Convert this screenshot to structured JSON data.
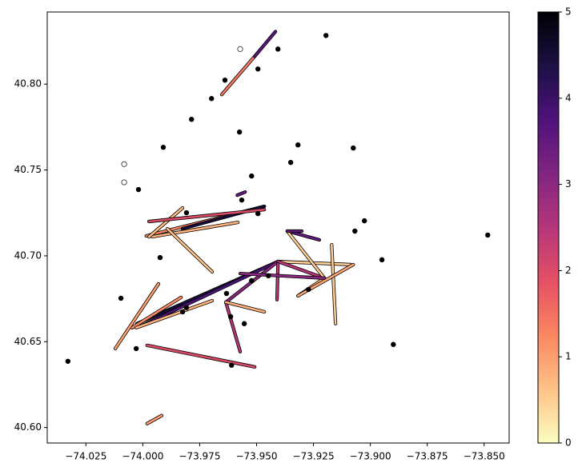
{
  "chart_data": {
    "type": "scatter",
    "xlim": [
      -74.042,
      -73.839
    ],
    "ylim": [
      40.591,
      40.842
    ],
    "xticks": [
      {
        "value": -74.025,
        "label": "−74.025"
      },
      {
        "value": -74.0,
        "label": "−74.000"
      },
      {
        "value": -73.975,
        "label": "−73.975"
      },
      {
        "value": -73.95,
        "label": "−73.950"
      },
      {
        "value": -73.925,
        "label": "−73.925"
      },
      {
        "value": -73.9,
        "label": "−73.900"
      },
      {
        "value": -73.875,
        "label": "−73.875"
      },
      {
        "value": -73.85,
        "label": "−73.850"
      }
    ],
    "yticks": [
      {
        "value": 40.6,
        "label": "40.60"
      },
      {
        "value": 40.65,
        "label": "40.65"
      },
      {
        "value": 40.7,
        "label": "40.70"
      },
      {
        "value": 40.75,
        "label": "40.75"
      },
      {
        "value": 40.8,
        "label": "40.80"
      }
    ],
    "series": [
      {
        "color": "#000000",
        "filled": true,
        "x": [
          -74.0329,
          -74.0029,
          -74.0096,
          -73.9808,
          -73.9825,
          -73.9614,
          -73.9554,
          -73.961,
          -73.9632,
          -73.9522,
          -73.9448,
          -73.9272,
          -73.8899,
          -73.8949,
          -73.9068,
          -73.9026,
          -73.8484,
          -73.9565,
          -73.9522,
          -73.9494,
          -73.935,
          -73.9318,
          -73.9075,
          -73.9575,
          -73.9786,
          -73.991,
          -73.9698,
          -73.9639,
          -73.9494,
          -73.9406,
          -73.9195,
          -74.0019,
          -73.9924,
          -73.9808
        ],
        "y": [
          40.6386,
          40.646,
          40.6753,
          40.6698,
          40.6674,
          40.6646,
          40.6605,
          40.6363,
          40.6781,
          40.6856,
          40.6884,
          40.6804,
          40.6484,
          40.6977,
          40.7144,
          40.7204,
          40.7121,
          40.7325,
          40.7465,
          40.7246,
          40.7544,
          40.7646,
          40.7628,
          40.7721,
          40.7795,
          40.7632,
          40.7916,
          40.8023,
          40.8088,
          40.8204,
          40.8283,
          40.7386,
          40.699,
          40.7251
        ]
      },
      {
        "color": "#000000",
        "filled": false,
        "x": [
          -73.9572,
          -74.0082,
          -74.0082
        ],
        "y": [
          40.8204,
          40.7534,
          40.7428
        ]
      }
    ],
    "lines": [
      {
        "x": [
          -73.9653,
          -73.9508
        ],
        "y": [
          40.7939,
          40.8162
        ],
        "value": 1.4
      },
      {
        "x": [
          -73.9508,
          -73.9417
        ],
        "y": [
          40.8162,
          40.8306
        ],
        "value": 3.6
      },
      {
        "x": [
          -73.9585,
          -73.955
        ],
        "y": [
          40.7353,
          40.7372
        ],
        "value": 3.5
      },
      {
        "x": [
          -73.9985,
          -73.9466
        ],
        "y": [
          40.7116,
          40.7288
        ],
        "value": 1.3
      },
      {
        "x": [
          -73.9826,
          -73.9466
        ],
        "y": [
          40.7158,
          40.7288
        ],
        "value": 4.5
      },
      {
        "x": [
          -73.9959,
          -73.9582
        ],
        "y": [
          40.7111,
          40.7195
        ],
        "value": 0.8
      },
      {
        "x": [
          -73.9825,
          -73.9973
        ],
        "y": [
          40.7279,
          40.7111
        ],
        "value": 0.7
      },
      {
        "x": [
          -73.9892,
          -73.9695
        ],
        "y": [
          40.7158,
          40.6907
        ],
        "value": 0.6
      },
      {
        "x": [
          -73.9973,
          -73.9466
        ],
        "y": [
          40.72,
          40.7269
        ],
        "value": 2.0
      },
      {
        "x": [
          -73.9406,
          -74.0026
        ],
        "y": [
          40.6967,
          40.6605
        ],
        "value": 4.5
      },
      {
        "x": [
          -73.9406,
          -74.0008
        ],
        "y": [
          40.6967,
          40.6591
        ],
        "value": 3.8
      },
      {
        "x": [
          -73.9832,
          -74.0047
        ],
        "y": [
          40.6758,
          40.6581
        ],
        "value": 1.2
      },
      {
        "x": [
          -73.9931,
          -74.0121
        ],
        "y": [
          40.6837,
          40.646
        ],
        "value": 1.0
      },
      {
        "x": [
          -74.0029,
          -73.9695
        ],
        "y": [
          40.6581,
          40.6739
        ],
        "value": 0.8
      },
      {
        "x": [
          -73.9406,
          -73.9635
        ],
        "y": [
          40.6967,
          40.673
        ],
        "value": 3.0
      },
      {
        "x": [
          -73.9635,
          -73.9572
        ],
        "y": [
          40.673,
          40.6442
        ],
        "value": 2.5
      },
      {
        "x": [
          -73.9981,
          -73.9508
        ],
        "y": [
          40.6479,
          40.6353
        ],
        "value": 2.0
      },
      {
        "x": [
          -73.9981,
          -73.9917
        ],
        "y": [
          40.6023,
          40.607
        ],
        "value": 1.0
      },
      {
        "x": [
          -73.9406,
          -73.9086
        ],
        "y": [
          40.6967,
          40.6949
        ],
        "value": 0.5
      },
      {
        "x": [
          -73.9406,
          -73.9202
        ],
        "y": [
          40.6967,
          40.687
        ],
        "value": 2.5
      },
      {
        "x": [
          -73.9202,
          -73.9318
        ],
        "y": [
          40.687,
          40.6767
        ],
        "value": 0.8
      },
      {
        "x": [
          -73.9365,
          -73.9224
        ],
        "y": [
          40.7144,
          40.7093
        ],
        "value": 3.5
      },
      {
        "x": [
          -73.9365,
          -73.9202
        ],
        "y": [
          40.7144,
          40.687
        ],
        "value": 0.5
      },
      {
        "x": [
          -73.917,
          -73.9153
        ],
        "y": [
          40.7065,
          40.6605
        ],
        "value": 0.5
      },
      {
        "x": [
          -73.9406,
          -73.941
        ],
        "y": [
          40.6953,
          40.6744
        ],
        "value": 2.5
      },
      {
        "x": [
          -73.9635,
          -73.9466
        ],
        "y": [
          40.673,
          40.6674
        ],
        "value": 0.8
      },
      {
        "x": [
          -73.9075,
          -73.9318
        ],
        "y": [
          40.6949,
          40.6767
        ],
        "value": 0.9
      },
      {
        "x": [
          -73.9572,
          -73.9202
        ],
        "y": [
          40.6897,
          40.687
        ],
        "value": 3.0
      },
      {
        "x": [
          -73.9365,
          -73.9301
        ],
        "y": [
          40.7144,
          40.7144
        ],
        "value": 3.5
      }
    ],
    "colorbar": {
      "lim": [
        0,
        5
      ],
      "ticks": [
        0,
        1,
        2,
        3,
        4,
        5
      ]
    }
  }
}
